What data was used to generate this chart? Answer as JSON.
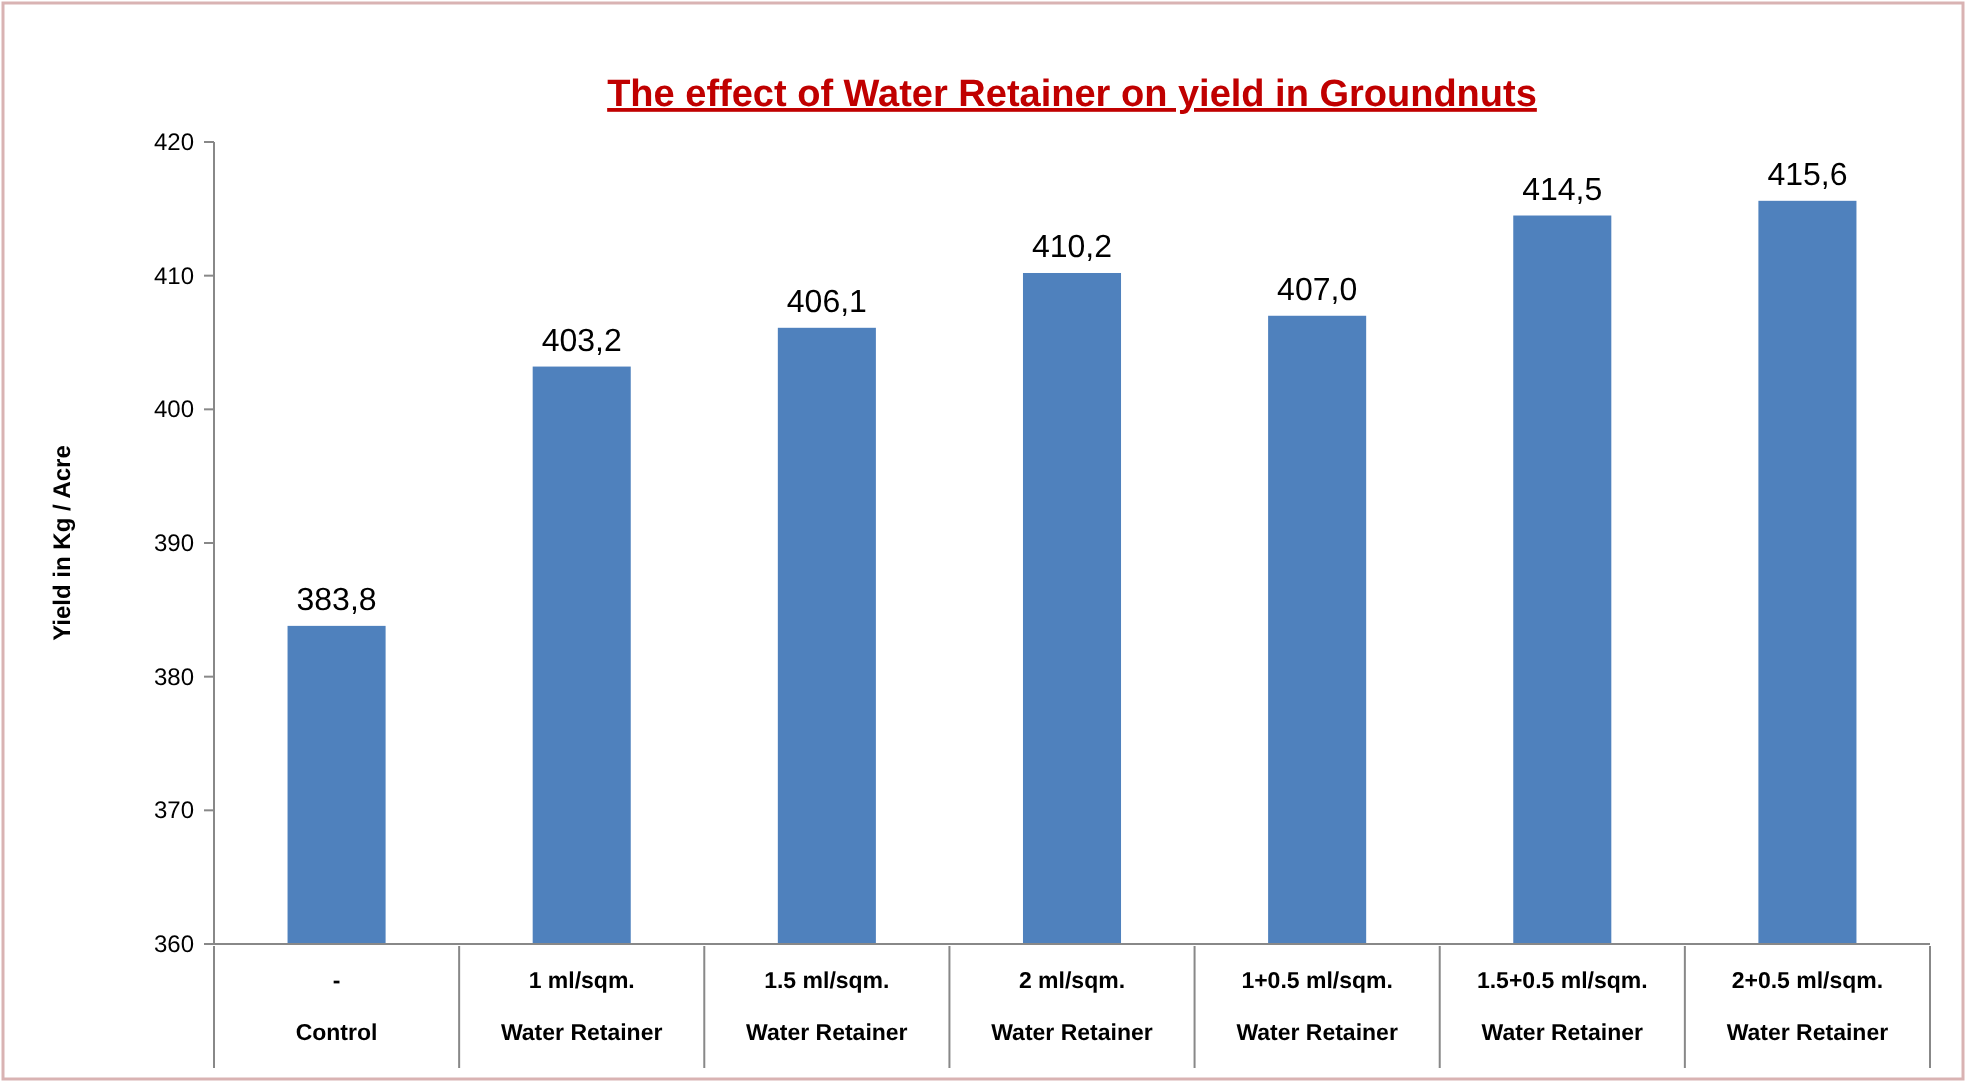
{
  "chart_data": {
    "type": "bar",
    "title": "The effect of Water Retainer on yield in Groundnuts",
    "ylabel": "Yield in Kg / Acre",
    "categories": [
      "-\nControl",
      "1 ml/sqm.\nWater Retainer",
      "1.5 ml/sqm.\nWater Retainer",
      "2 ml/sqm.\nWater Retainer",
      "1+0.5 ml/sqm.\nWater Retainer",
      "1.5+0.5 ml/sqm.\nWater Retainer",
      "2+0.5 ml/sqm.\nWater Retainer"
    ],
    "values": [
      383.8,
      403.2,
      406.1,
      410.2,
      407.0,
      414.5,
      415.6
    ],
    "value_labels": [
      "383,8",
      "403,2",
      "406,1",
      "410,2",
      "407,0",
      "414,5",
      "415,6"
    ],
    "color": "#4f81bd",
    "ylim": [
      360,
      420
    ],
    "yticks": [
      360,
      370,
      380,
      390,
      400,
      410,
      420
    ],
    "grid": false
  }
}
